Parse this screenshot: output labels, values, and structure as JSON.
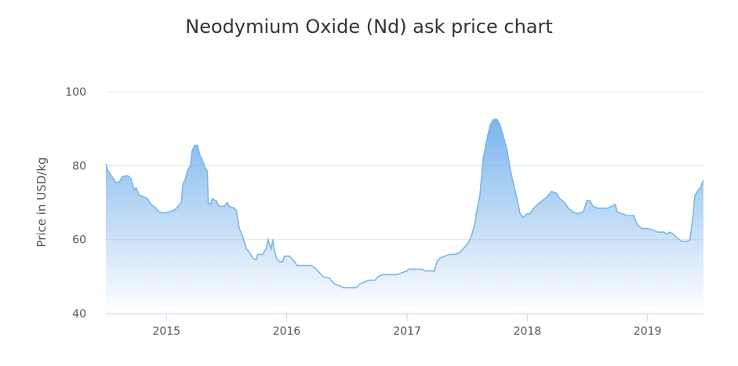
{
  "chart_data": {
    "type": "area",
    "title": "Neodymium Oxide (Nd) ask price chart",
    "xlabel": "",
    "ylabel": "Price in USD/kg",
    "ylim": [
      40,
      100
    ],
    "xlim": [
      "2014-07-01",
      "2019-06-20"
    ],
    "y_ticks": [
      "40",
      "60",
      "80",
      "100"
    ],
    "x_ticks": [
      "2015",
      "2016",
      "2017",
      "2018",
      "2019"
    ],
    "grid": true,
    "legend": "none",
    "colors": {
      "line": "#7cb5ec",
      "fill_top": "#7cb5ec",
      "fill_bottom": "#ffffff",
      "grid": "#e6e6e6",
      "axis": "#ccd6eb"
    },
    "series": [
      {
        "values": [
          [
            "2014-07-01",
            80.5
          ],
          [
            "2014-07-08",
            78.5
          ],
          [
            "2014-07-20",
            77
          ],
          [
            "2014-07-31",
            75.5
          ],
          [
            "2014-08-10",
            75.5
          ],
          [
            "2014-08-20",
            77
          ],
          [
            "2014-09-05",
            77.3
          ],
          [
            "2014-09-15",
            76.5
          ],
          [
            "2014-09-25",
            73.5
          ],
          [
            "2014-10-01",
            74
          ],
          [
            "2014-10-10",
            72
          ],
          [
            "2014-10-25",
            71.5
          ],
          [
            "2014-11-05",
            71
          ],
          [
            "2014-11-15",
            69.5
          ],
          [
            "2014-11-30",
            68.5
          ],
          [
            "2014-12-10",
            67.5
          ],
          [
            "2014-12-25",
            67.2
          ],
          [
            "2015-01-10",
            67.5
          ],
          [
            "2015-01-25",
            68
          ],
          [
            "2015-02-05",
            69
          ],
          [
            "2015-02-15",
            70
          ],
          [
            "2015-02-20",
            75
          ],
          [
            "2015-02-28",
            76.5
          ],
          [
            "2015-03-05",
            78.5
          ],
          [
            "2015-03-15",
            80
          ],
          [
            "2015-03-20",
            84
          ],
          [
            "2015-03-28",
            85.5
          ],
          [
            "2015-04-05",
            85.5
          ],
          [
            "2015-04-12",
            83
          ],
          [
            "2015-04-20",
            81.5
          ],
          [
            "2015-04-28",
            79.5
          ],
          [
            "2015-05-05",
            78.5
          ],
          [
            "2015-05-08",
            70
          ],
          [
            "2015-05-15",
            69.5
          ],
          [
            "2015-05-20",
            71
          ],
          [
            "2015-06-01",
            70.5
          ],
          [
            "2015-06-10",
            69
          ],
          [
            "2015-06-25",
            69
          ],
          [
            "2015-07-05",
            70
          ],
          [
            "2015-07-10",
            69
          ],
          [
            "2015-07-25",
            68.5
          ],
          [
            "2015-08-01",
            68
          ],
          [
            "2015-08-10",
            63
          ],
          [
            "2015-08-20",
            61
          ],
          [
            "2015-09-01",
            57.5
          ],
          [
            "2015-09-10",
            56.5
          ],
          [
            "2015-09-20",
            55
          ],
          [
            "2015-10-01",
            54.5
          ],
          [
            "2015-10-05",
            56
          ],
          [
            "2015-10-20",
            56
          ],
          [
            "2015-10-31",
            57.5
          ],
          [
            "2015-11-05",
            60
          ],
          [
            "2015-11-15",
            57.5
          ],
          [
            "2015-11-20",
            60
          ],
          [
            "2015-11-25",
            57
          ],
          [
            "2015-12-01",
            55
          ],
          [
            "2015-12-10",
            54
          ],
          [
            "2015-12-20",
            54
          ],
          [
            "2015-12-25",
            55.5
          ],
          [
            "2016-01-10",
            55.5
          ],
          [
            "2016-01-25",
            54
          ],
          [
            "2016-02-01",
            53
          ],
          [
            "2016-02-20",
            53
          ],
          [
            "2016-03-15",
            53
          ],
          [
            "2016-03-31",
            52
          ],
          [
            "2016-04-10",
            51
          ],
          [
            "2016-04-20",
            50
          ],
          [
            "2016-05-10",
            49.5
          ],
          [
            "2016-05-25",
            48
          ],
          [
            "2016-06-10",
            47.5
          ],
          [
            "2016-06-20",
            47
          ],
          [
            "2016-07-15",
            47
          ],
          [
            "2016-08-01",
            47
          ],
          [
            "2016-08-10",
            48
          ],
          [
            "2016-08-25",
            48.5
          ],
          [
            "2016-09-05",
            49
          ],
          [
            "2016-09-25",
            49
          ],
          [
            "2016-10-05",
            50
          ],
          [
            "2016-10-20",
            50.5
          ],
          [
            "2016-11-15",
            50.5
          ],
          [
            "2016-12-01",
            50.5
          ],
          [
            "2016-12-15",
            51
          ],
          [
            "2016-12-31",
            51.5
          ],
          [
            "2017-01-05",
            52
          ],
          [
            "2017-01-25",
            52
          ],
          [
            "2017-02-15",
            52
          ],
          [
            "2017-02-25",
            51.5
          ],
          [
            "2017-03-10",
            51.5
          ],
          [
            "2017-03-25",
            51.5
          ],
          [
            "2017-04-01",
            54
          ],
          [
            "2017-04-10",
            55
          ],
          [
            "2017-04-25",
            55.5
          ],
          [
            "2017-05-10",
            56
          ],
          [
            "2017-05-25",
            56
          ],
          [
            "2017-06-10",
            56.5
          ],
          [
            "2017-06-25",
            58
          ],
          [
            "2017-07-05",
            59
          ],
          [
            "2017-07-15",
            61
          ],
          [
            "2017-07-25",
            64
          ],
          [
            "2017-08-01",
            68
          ],
          [
            "2017-08-10",
            72
          ],
          [
            "2017-08-20",
            82
          ],
          [
            "2017-08-31",
            87
          ],
          [
            "2017-09-10",
            91
          ],
          [
            "2017-09-20",
            92.5
          ],
          [
            "2017-10-01",
            92.5
          ],
          [
            "2017-10-10",
            91
          ],
          [
            "2017-10-20",
            88
          ],
          [
            "2017-11-01",
            84
          ],
          [
            "2017-11-10",
            79
          ],
          [
            "2017-11-20",
            75
          ],
          [
            "2017-12-01",
            71
          ],
          [
            "2017-12-10",
            67
          ],
          [
            "2017-12-20",
            66
          ],
          [
            "2017-12-31",
            67
          ],
          [
            "2018-01-10",
            67
          ],
          [
            "2018-01-20",
            68.5
          ],
          [
            "2018-02-01",
            69.5
          ],
          [
            "2018-02-15",
            70.5
          ],
          [
            "2018-03-01",
            71.5
          ],
          [
            "2018-03-15",
            73
          ],
          [
            "2018-03-31",
            72.5
          ],
          [
            "2018-04-10",
            71
          ],
          [
            "2018-04-25",
            70
          ],
          [
            "2018-05-05",
            68.5
          ],
          [
            "2018-05-20",
            67.5
          ],
          [
            "2018-06-01",
            67
          ],
          [
            "2018-06-20",
            67.5
          ],
          [
            "2018-07-01",
            70.5
          ],
          [
            "2018-07-10",
            70.5
          ],
          [
            "2018-07-20",
            69
          ],
          [
            "2018-08-01",
            68.5
          ],
          [
            "2018-08-15",
            68.5
          ],
          [
            "2018-09-01",
            68.5
          ],
          [
            "2018-09-15",
            69
          ],
          [
            "2018-09-25",
            69.5
          ],
          [
            "2018-10-01",
            67.5
          ],
          [
            "2018-10-15",
            67
          ],
          [
            "2018-11-01",
            66.5
          ],
          [
            "2018-11-20",
            66.5
          ],
          [
            "2018-12-01",
            64
          ],
          [
            "2018-12-15",
            63
          ],
          [
            "2019-01-01",
            63
          ],
          [
            "2019-01-20",
            62.5
          ],
          [
            "2019-02-01",
            62
          ],
          [
            "2019-02-20",
            62
          ],
          [
            "2019-03-01",
            61.5
          ],
          [
            "2019-03-10",
            62
          ],
          [
            "2019-03-20",
            61.5
          ],
          [
            "2019-04-01",
            60.5
          ],
          [
            "2019-04-15",
            59.5
          ],
          [
            "2019-05-01",
            59.5
          ],
          [
            "2019-05-10",
            60
          ],
          [
            "2019-05-20",
            67
          ],
          [
            "2019-05-25",
            72
          ],
          [
            "2019-06-01",
            73
          ],
          [
            "2019-06-10",
            74
          ],
          [
            "2019-06-20",
            76
          ]
        ]
      }
    ]
  }
}
